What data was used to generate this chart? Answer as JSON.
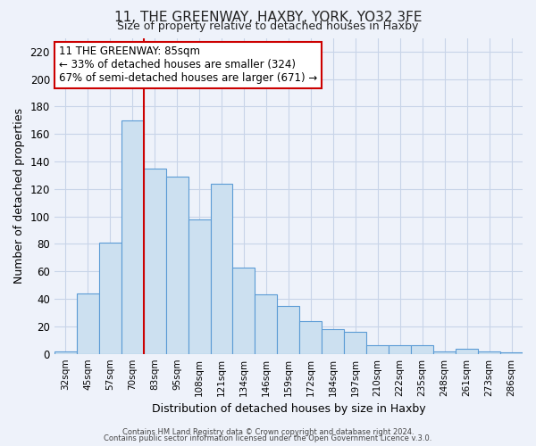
{
  "title": "11, THE GREENWAY, HAXBY, YORK, YO32 3FE",
  "subtitle": "Size of property relative to detached houses in Haxby",
  "xlabel": "Distribution of detached houses by size in Haxby",
  "ylabel": "Number of detached properties",
  "footer_lines": [
    "Contains HM Land Registry data © Crown copyright and database right 2024.",
    "Contains public sector information licensed under the Open Government Licence v.3.0."
  ],
  "bar_labels": [
    "32sqm",
    "45sqm",
    "57sqm",
    "70sqm",
    "83sqm",
    "95sqm",
    "108sqm",
    "121sqm",
    "134sqm",
    "146sqm",
    "159sqm",
    "172sqm",
    "184sqm",
    "197sqm",
    "210sqm",
    "222sqm",
    "235sqm",
    "248sqm",
    "261sqm",
    "273sqm",
    "286sqm"
  ],
  "bar_values": [
    2,
    44,
    81,
    170,
    135,
    129,
    98,
    124,
    63,
    43,
    35,
    24,
    18,
    16,
    6,
    6,
    6,
    2,
    4,
    2,
    1
  ],
  "bar_color": "#cce0f0",
  "bar_edge_color": "#5b9bd5",
  "highlight_index": 4,
  "highlight_line_color": "#cc0000",
  "ylim": [
    0,
    230
  ],
  "yticks": [
    0,
    20,
    40,
    60,
    80,
    100,
    120,
    140,
    160,
    180,
    200,
    220
  ],
  "annotation_title": "11 THE GREENWAY: 85sqm",
  "annotation_line1": "← 33% of detached houses are smaller (324)",
  "annotation_line2": "67% of semi-detached houses are larger (671) →",
  "annotation_box_color": "#ffffff",
  "annotation_box_edge": "#cc0000",
  "grid_color": "#c8d4e8",
  "background_color": "#eef2fa",
  "title_fontsize": 11,
  "subtitle_fontsize": 9
}
